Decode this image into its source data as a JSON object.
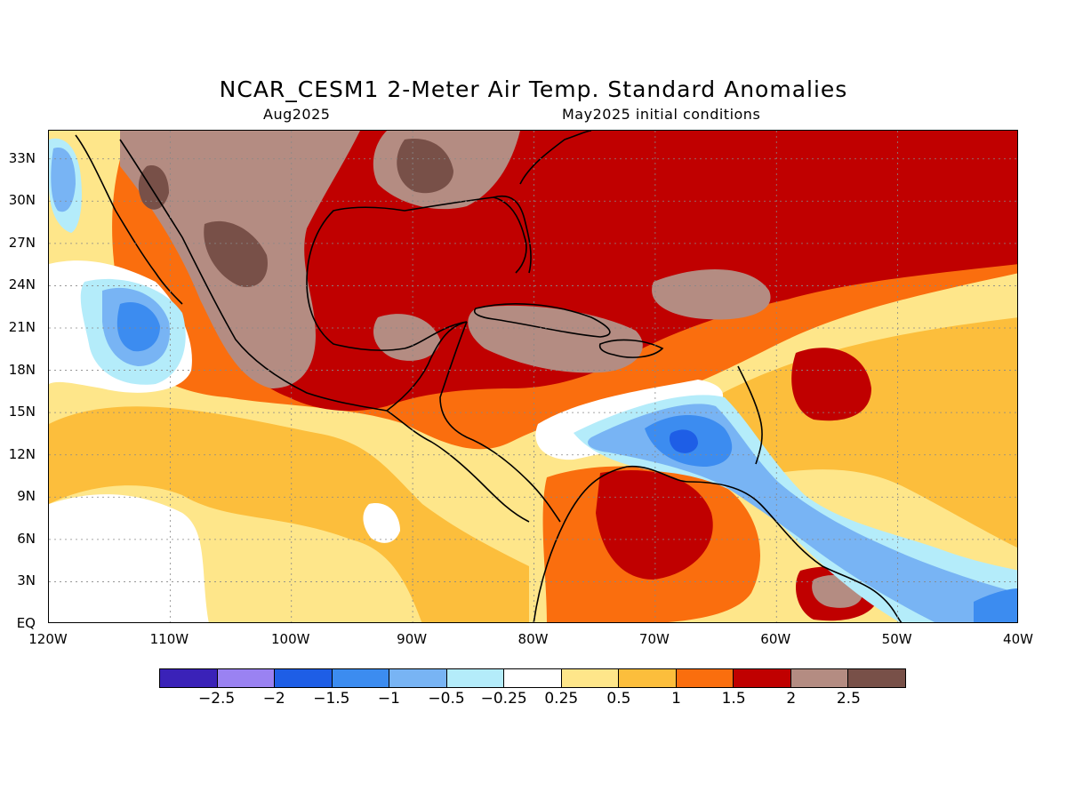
{
  "title": "NCAR_CESM1 2-Meter Air Temp. Standard Anomalies",
  "subtitle_left": "Aug2025",
  "subtitle_right": "May2025 initial conditions",
  "lat_ticks": [
    {
      "label": "33N",
      "value": 33
    },
    {
      "label": "30N",
      "value": 30
    },
    {
      "label": "27N",
      "value": 27
    },
    {
      "label": "24N",
      "value": 24
    },
    {
      "label": "21N",
      "value": 21
    },
    {
      "label": "18N",
      "value": 18
    },
    {
      "label": "15N",
      "value": 15
    },
    {
      "label": "12N",
      "value": 12
    },
    {
      "label": "9N",
      "value": 9
    },
    {
      "label": "6N",
      "value": 6
    },
    {
      "label": "3N",
      "value": 3
    },
    {
      "label": "EQ",
      "value": 0
    }
  ],
  "lon_ticks": [
    {
      "label": "120W",
      "value": -120
    },
    {
      "label": "110W",
      "value": -110
    },
    {
      "label": "100W",
      "value": -100
    },
    {
      "label": "90W",
      "value": -90
    },
    {
      "label": "80W",
      "value": -80
    },
    {
      "label": "70W",
      "value": -70
    },
    {
      "label": "60W",
      "value": -60
    },
    {
      "label": "50W",
      "value": -50
    },
    {
      "label": "40W",
      "value": -40
    }
  ],
  "map_extent": {
    "lon_min": -120,
    "lon_max": -40,
    "lat_min": 0,
    "lat_max": 35
  },
  "colorbar": {
    "colors": [
      "#3a22b8",
      "#9a82f2",
      "#1e5ee6",
      "#3c8cf0",
      "#78b4f4",
      "#b4ecfa",
      "#ffffff",
      "#fee68a",
      "#fcbe3c",
      "#fa6e0e",
      "#c00000",
      "#b48c82",
      "#785048"
    ],
    "labels": [
      "−2.5",
      "−2",
      "−1.5",
      "−1",
      "−0.5",
      "−0.25",
      "0.25",
      "0.5",
      "1",
      "1.5",
      "2",
      "2.5"
    ]
  },
  "colors": {
    "background": "#fee68a",
    "warm_1": "#fcbe3c",
    "warm_2": "#fa6e0e",
    "warm_3": "#c00000",
    "warm_4": "#b48c82",
    "warm_5": "#785048",
    "neutral": "#ffffff",
    "cool_1": "#b4ecfa",
    "cool_2": "#78b4f4",
    "cool_3": "#3c8cf0",
    "cool_4": "#1e5ee6"
  }
}
